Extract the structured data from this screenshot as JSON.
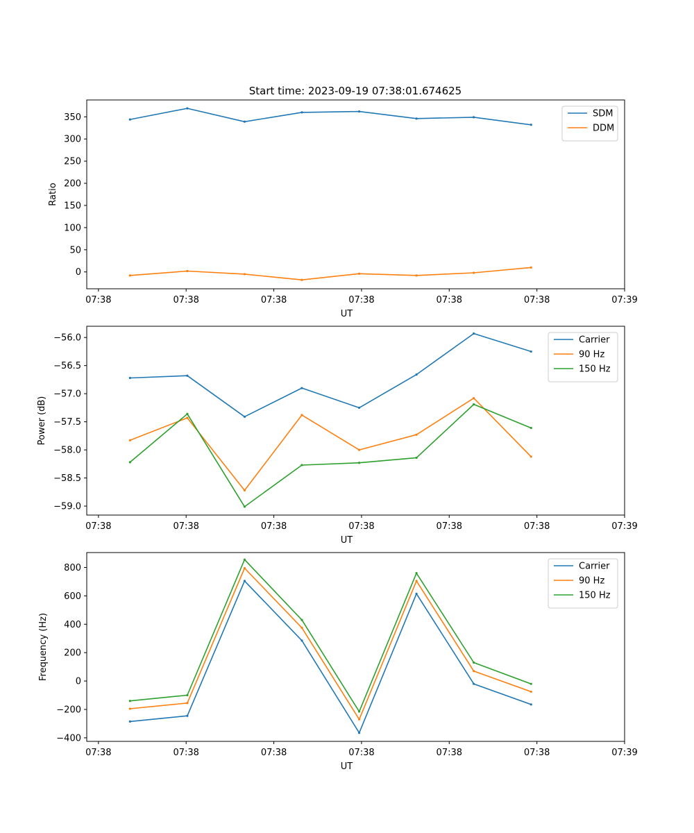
{
  "title": "Start time: 2023-09-19 07:38:01.674625",
  "chart_data": [
    {
      "type": "line",
      "title": "Start time: 2023-09-19 07:38:01.674625",
      "xlabel": "UT",
      "ylabel": "Ratio",
      "xtick_labels": [
        "07:38",
        "07:38",
        "07:38",
        "07:38",
        "07:38",
        "07:38",
        "07:39"
      ],
      "xlim": [
        -0.2,
        9.0
      ],
      "ylim": [
        -38,
        388
      ],
      "yticks": [
        0,
        50,
        100,
        150,
        200,
        250,
        300,
        350
      ],
      "x": [
        0.54,
        1.52,
        2.5,
        3.48,
        4.46,
        5.44,
        6.42,
        7.4
      ],
      "legend": "upper right",
      "series": [
        {
          "name": "SDM",
          "color": "#1f77b4",
          "values": [
            344,
            369,
            339,
            360,
            362,
            346,
            349,
            332
          ]
        },
        {
          "name": "DDM",
          "color": "#ff7f0e",
          "values": [
            -8,
            2,
            -5,
            -18,
            -4,
            -8,
            -2,
            10
          ]
        }
      ]
    },
    {
      "type": "line",
      "xlabel": "UT",
      "ylabel": "Power (dB)",
      "xtick_labels": [
        "07:38",
        "07:38",
        "07:38",
        "07:38",
        "07:38",
        "07:38",
        "07:39"
      ],
      "xlim": [
        -0.2,
        9.0
      ],
      "ylim": [
        -59.16,
        -55.8
      ],
      "yticks": [
        -59.0,
        -58.5,
        -58.0,
        -57.5,
        -57.0,
        -56.5,
        -56.0
      ],
      "x": [
        0.54,
        1.52,
        2.5,
        3.48,
        4.46,
        5.44,
        6.42,
        7.4
      ],
      "legend": "upper right",
      "series": [
        {
          "name": "Carrier",
          "color": "#1f77b4",
          "values": [
            -56.72,
            -56.68,
            -57.41,
            -56.9,
            -57.25,
            -56.66,
            -55.93,
            -56.25
          ]
        },
        {
          "name": "90 Hz",
          "color": "#ff7f0e",
          "values": [
            -57.83,
            -57.43,
            -58.72,
            -57.38,
            -58.0,
            -57.73,
            -57.08,
            -58.12
          ]
        },
        {
          "name": "150 Hz",
          "color": "#2ca02c",
          "values": [
            -58.22,
            -57.36,
            -59.01,
            -58.27,
            -58.23,
            -58.14,
            -57.19,
            -57.61
          ]
        }
      ]
    },
    {
      "type": "line",
      "xlabel": "UT",
      "ylabel": "Frequency (Hz)",
      "xtick_labels": [
        "07:38",
        "07:38",
        "07:38",
        "07:38",
        "07:38",
        "07:38",
        "07:39"
      ],
      "xlim": [
        -0.2,
        9.0
      ],
      "ylim": [
        -425,
        905
      ],
      "yticks": [
        -400,
        -200,
        0,
        200,
        400,
        600,
        800
      ],
      "x": [
        0.54,
        1.52,
        2.5,
        3.48,
        4.46,
        5.44,
        6.42,
        7.4
      ],
      "legend": "upper right",
      "series": [
        {
          "name": "Carrier",
          "color": "#1f77b4",
          "values": [
            -285,
            -245,
            705,
            285,
            -365,
            615,
            -20,
            -165
          ]
        },
        {
          "name": "90 Hz",
          "color": "#ff7f0e",
          "values": [
            -195,
            -155,
            795,
            375,
            -270,
            705,
            70,
            -75
          ]
        },
        {
          "name": "150 Hz",
          "color": "#2ca02c",
          "values": [
            -140,
            -100,
            855,
            430,
            -215,
            760,
            130,
            -20
          ]
        }
      ]
    }
  ]
}
